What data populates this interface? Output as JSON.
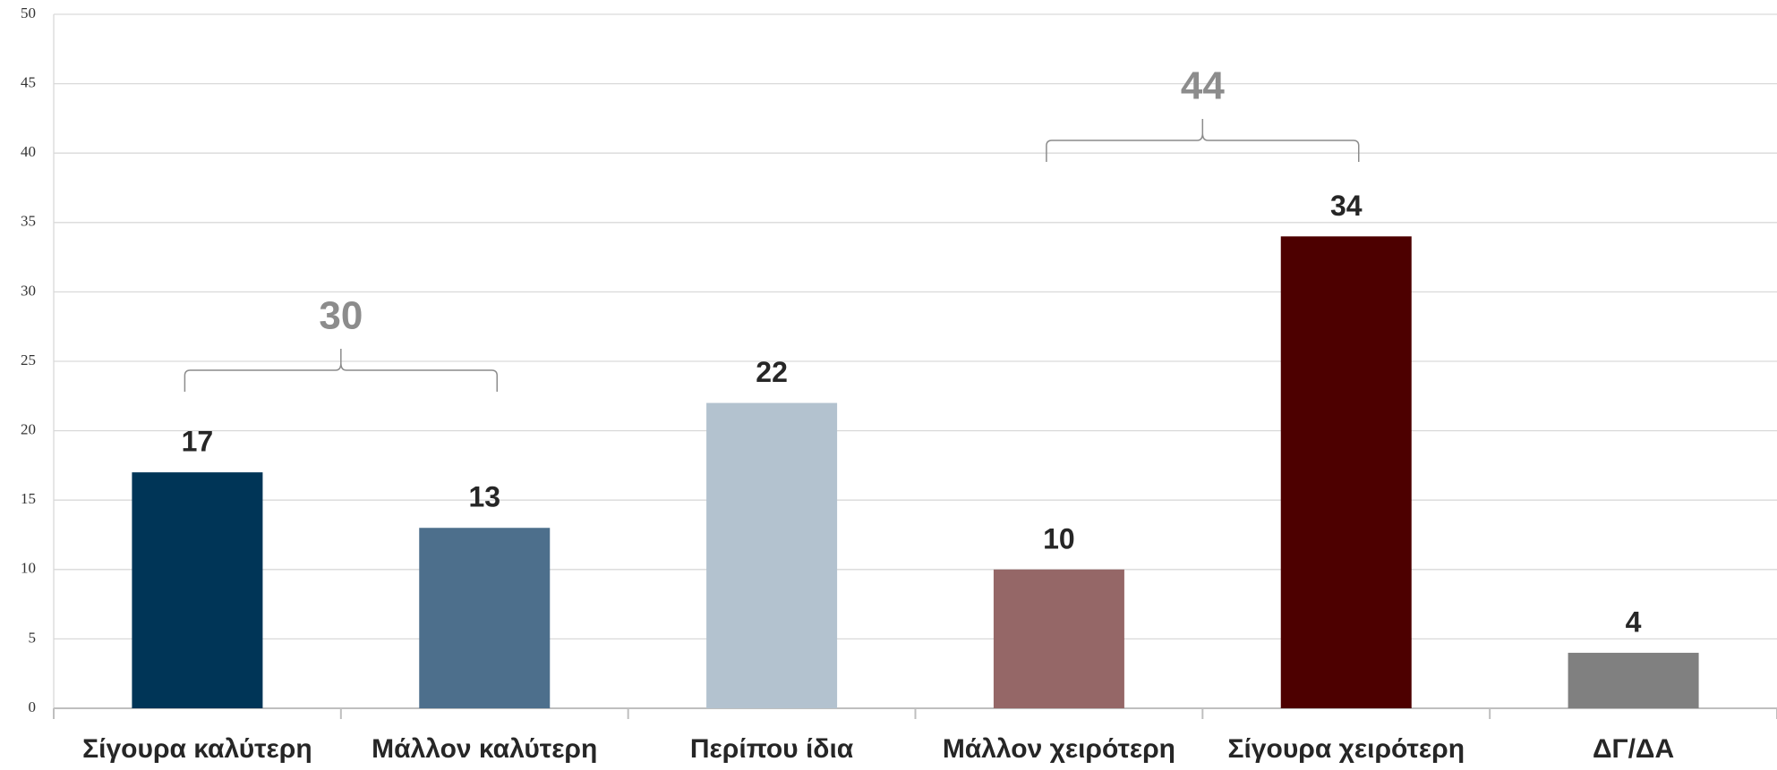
{
  "chart_data": {
    "type": "bar",
    "categories": [
      "Σίγουρα καλύτερη",
      "Μάλλον καλύτερη",
      "Περίπου ίδια",
      "Μάλλον χειρότερη",
      "Σίγουρα χειρότερη",
      "ΔΓ/ΔΑ"
    ],
    "values": [
      17,
      13,
      22,
      10,
      34,
      4
    ],
    "colors": [
      "#003557",
      "#4d6f8c",
      "#b3c2cf",
      "#956767",
      "#4d0000",
      "#808080"
    ],
    "ylim": [
      0,
      50
    ],
    "yticks": [
      0,
      5,
      10,
      15,
      20,
      25,
      30,
      35,
      40,
      45,
      50
    ],
    "grid": true,
    "annotations": [
      "30",
      "44"
    ]
  }
}
